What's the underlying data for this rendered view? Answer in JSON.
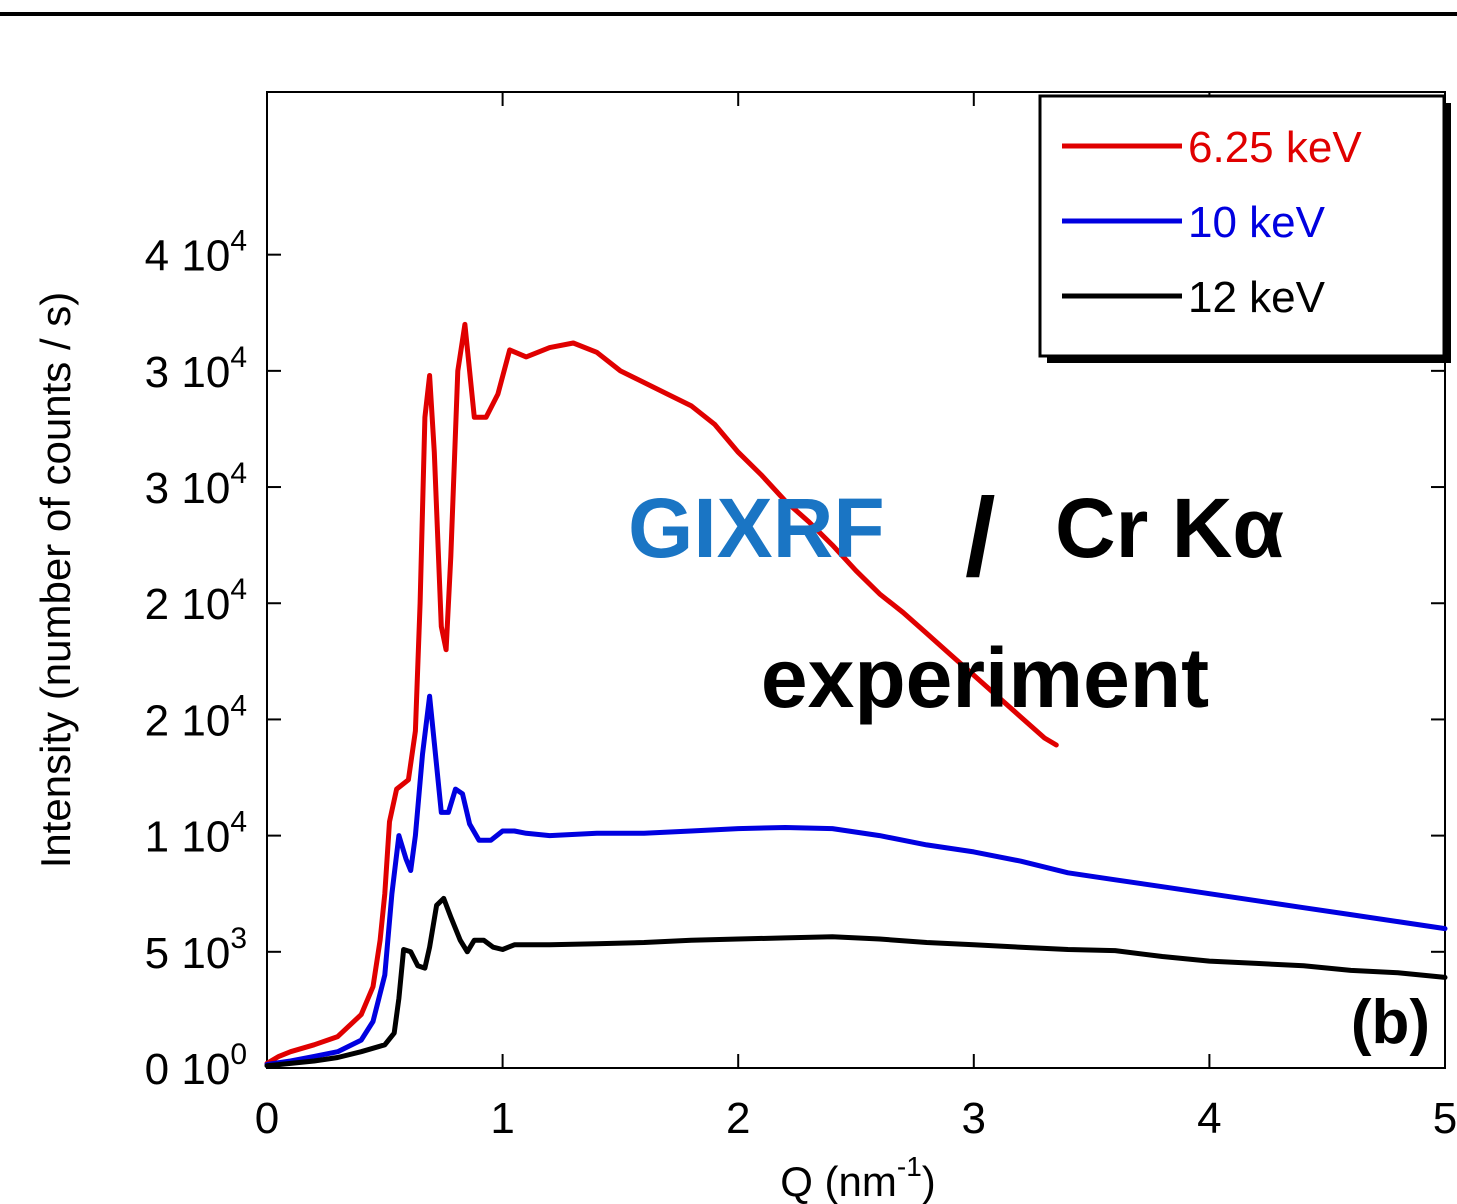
{
  "chart_data": {
    "type": "line",
    "xlabel": {
      "main": "Q (nm",
      "sup": "-1",
      "end": ")"
    },
    "ylabel": "Intensity (number of counts / s)",
    "xlim": [
      0,
      5
    ],
    "ylim": [
      0,
      42000
    ],
    "x_ticks": [
      {
        "v": 0,
        "label": "0"
      },
      {
        "v": 1,
        "label": "1"
      },
      {
        "v": 2,
        "label": "2"
      },
      {
        "v": 3,
        "label": "3"
      },
      {
        "v": 4,
        "label": "4"
      },
      {
        "v": 5,
        "label": "5"
      }
    ],
    "y_ticks": [
      {
        "v": 0,
        "base": "0 10",
        "exp": "0"
      },
      {
        "v": 5000,
        "base": "5 10",
        "exp": "3"
      },
      {
        "v": 10000,
        "base": "1 10",
        "exp": "4"
      },
      {
        "v": 15000,
        "base": "2 10",
        "exp": "4"
      },
      {
        "v": 20000,
        "base": "2 10",
        "exp": "4"
      },
      {
        "v": 25000,
        "base": "3 10",
        "exp": "4"
      },
      {
        "v": 30000,
        "base": "3 10",
        "exp": "4"
      },
      {
        "v": 35000,
        "base": "4 10",
        "exp": "4"
      }
    ],
    "legend_position": "top-right",
    "series": [
      {
        "name": "6.25 keV",
        "color": "#e00000",
        "points": [
          [
            0.0,
            200
          ],
          [
            0.05,
            500
          ],
          [
            0.1,
            700
          ],
          [
            0.2,
            1000
          ],
          [
            0.3,
            1350
          ],
          [
            0.4,
            2300
          ],
          [
            0.45,
            3500
          ],
          [
            0.48,
            5500
          ],
          [
            0.5,
            7500
          ],
          [
            0.52,
            10600
          ],
          [
            0.55,
            12000
          ],
          [
            0.6,
            12400
          ],
          [
            0.63,
            14500
          ],
          [
            0.65,
            20000
          ],
          [
            0.67,
            28000
          ],
          [
            0.69,
            29800
          ],
          [
            0.71,
            26500
          ],
          [
            0.74,
            19000
          ],
          [
            0.76,
            18000
          ],
          [
            0.78,
            22000
          ],
          [
            0.81,
            30000
          ],
          [
            0.84,
            32000
          ],
          [
            0.86,
            30000
          ],
          [
            0.88,
            28000
          ],
          [
            0.93,
            28000
          ],
          [
            0.98,
            29000
          ],
          [
            1.03,
            30900
          ],
          [
            1.1,
            30600
          ],
          [
            1.2,
            31000
          ],
          [
            1.3,
            31200
          ],
          [
            1.4,
            30800
          ],
          [
            1.5,
            30000
          ],
          [
            1.6,
            29500
          ],
          [
            1.7,
            29000
          ],
          [
            1.8,
            28500
          ],
          [
            1.9,
            27700
          ],
          [
            2.0,
            26500
          ],
          [
            2.1,
            25500
          ],
          [
            2.2,
            24400
          ],
          [
            2.3,
            23500
          ],
          [
            2.4,
            22500
          ],
          [
            2.5,
            21400
          ],
          [
            2.6,
            20400
          ],
          [
            2.7,
            19600
          ],
          [
            2.8,
            18700
          ],
          [
            2.9,
            17800
          ],
          [
            3.0,
            16900
          ],
          [
            3.1,
            16000
          ],
          [
            3.2,
            15100
          ],
          [
            3.3,
            14200
          ],
          [
            3.35,
            13900
          ]
        ]
      },
      {
        "name": "10 keV",
        "color": "#0000e0",
        "points": [
          [
            0.0,
            150
          ],
          [
            0.1,
            300
          ],
          [
            0.2,
            500
          ],
          [
            0.3,
            700
          ],
          [
            0.4,
            1200
          ],
          [
            0.45,
            2000
          ],
          [
            0.5,
            4000
          ],
          [
            0.53,
            7500
          ],
          [
            0.56,
            10000
          ],
          [
            0.59,
            9000
          ],
          [
            0.61,
            8500
          ],
          [
            0.63,
            10000
          ],
          [
            0.66,
            13500
          ],
          [
            0.69,
            16000
          ],
          [
            0.71,
            14000
          ],
          [
            0.74,
            11000
          ],
          [
            0.77,
            11000
          ],
          [
            0.8,
            12000
          ],
          [
            0.83,
            11800
          ],
          [
            0.86,
            10500
          ],
          [
            0.9,
            9800
          ],
          [
            0.95,
            9800
          ],
          [
            1.0,
            10200
          ],
          [
            1.05,
            10200
          ],
          [
            1.1,
            10100
          ],
          [
            1.2,
            10000
          ],
          [
            1.4,
            10100
          ],
          [
            1.6,
            10100
          ],
          [
            1.8,
            10200
          ],
          [
            2.0,
            10300
          ],
          [
            2.2,
            10350
          ],
          [
            2.4,
            10300
          ],
          [
            2.6,
            10000
          ],
          [
            2.8,
            9600
          ],
          [
            3.0,
            9300
          ],
          [
            3.2,
            8900
          ],
          [
            3.4,
            8400
          ],
          [
            3.6,
            8100
          ],
          [
            3.8,
            7800
          ],
          [
            4.0,
            7500
          ],
          [
            4.2,
            7200
          ],
          [
            4.4,
            6900
          ],
          [
            4.6,
            6600
          ],
          [
            4.8,
            6300
          ],
          [
            5.0,
            6000
          ]
        ]
      },
      {
        "name": "12 keV",
        "color": "#000000",
        "points": [
          [
            0.0,
            100
          ],
          [
            0.1,
            200
          ],
          [
            0.2,
            300
          ],
          [
            0.3,
            450
          ],
          [
            0.4,
            700
          ],
          [
            0.5,
            1000
          ],
          [
            0.54,
            1500
          ],
          [
            0.56,
            3000
          ],
          [
            0.58,
            5100
          ],
          [
            0.61,
            5000
          ],
          [
            0.64,
            4400
          ],
          [
            0.67,
            4300
          ],
          [
            0.69,
            5200
          ],
          [
            0.72,
            7000
          ],
          [
            0.75,
            7300
          ],
          [
            0.78,
            6500
          ],
          [
            0.82,
            5500
          ],
          [
            0.85,
            5000
          ],
          [
            0.88,
            5500
          ],
          [
            0.92,
            5500
          ],
          [
            0.96,
            5200
          ],
          [
            1.0,
            5100
          ],
          [
            1.05,
            5300
          ],
          [
            1.2,
            5300
          ],
          [
            1.4,
            5350
          ],
          [
            1.6,
            5400
          ],
          [
            1.8,
            5500
          ],
          [
            2.0,
            5550
          ],
          [
            2.2,
            5600
          ],
          [
            2.4,
            5650
          ],
          [
            2.6,
            5550
          ],
          [
            2.8,
            5400
          ],
          [
            3.0,
            5300
          ],
          [
            3.2,
            5200
          ],
          [
            3.4,
            5100
          ],
          [
            3.6,
            5050
          ],
          [
            3.8,
            4800
          ],
          [
            4.0,
            4600
          ],
          [
            4.2,
            4500
          ],
          [
            4.4,
            4400
          ],
          [
            4.6,
            4200
          ],
          [
            4.8,
            4100
          ],
          [
            5.0,
            3900
          ]
        ]
      }
    ],
    "annotations": [
      {
        "id": "gixrf",
        "text": "GIXRF",
        "color": "#1a75c4"
      },
      {
        "id": "slash",
        "text": "/",
        "color": "#000000"
      },
      {
        "id": "cr",
        "text": "Cr Kα",
        "color": "#000000"
      },
      {
        "id": "experiment",
        "text": "experiment",
        "color": "#000000"
      },
      {
        "id": "panel",
        "text": "(b)",
        "color": "#000000"
      }
    ]
  }
}
